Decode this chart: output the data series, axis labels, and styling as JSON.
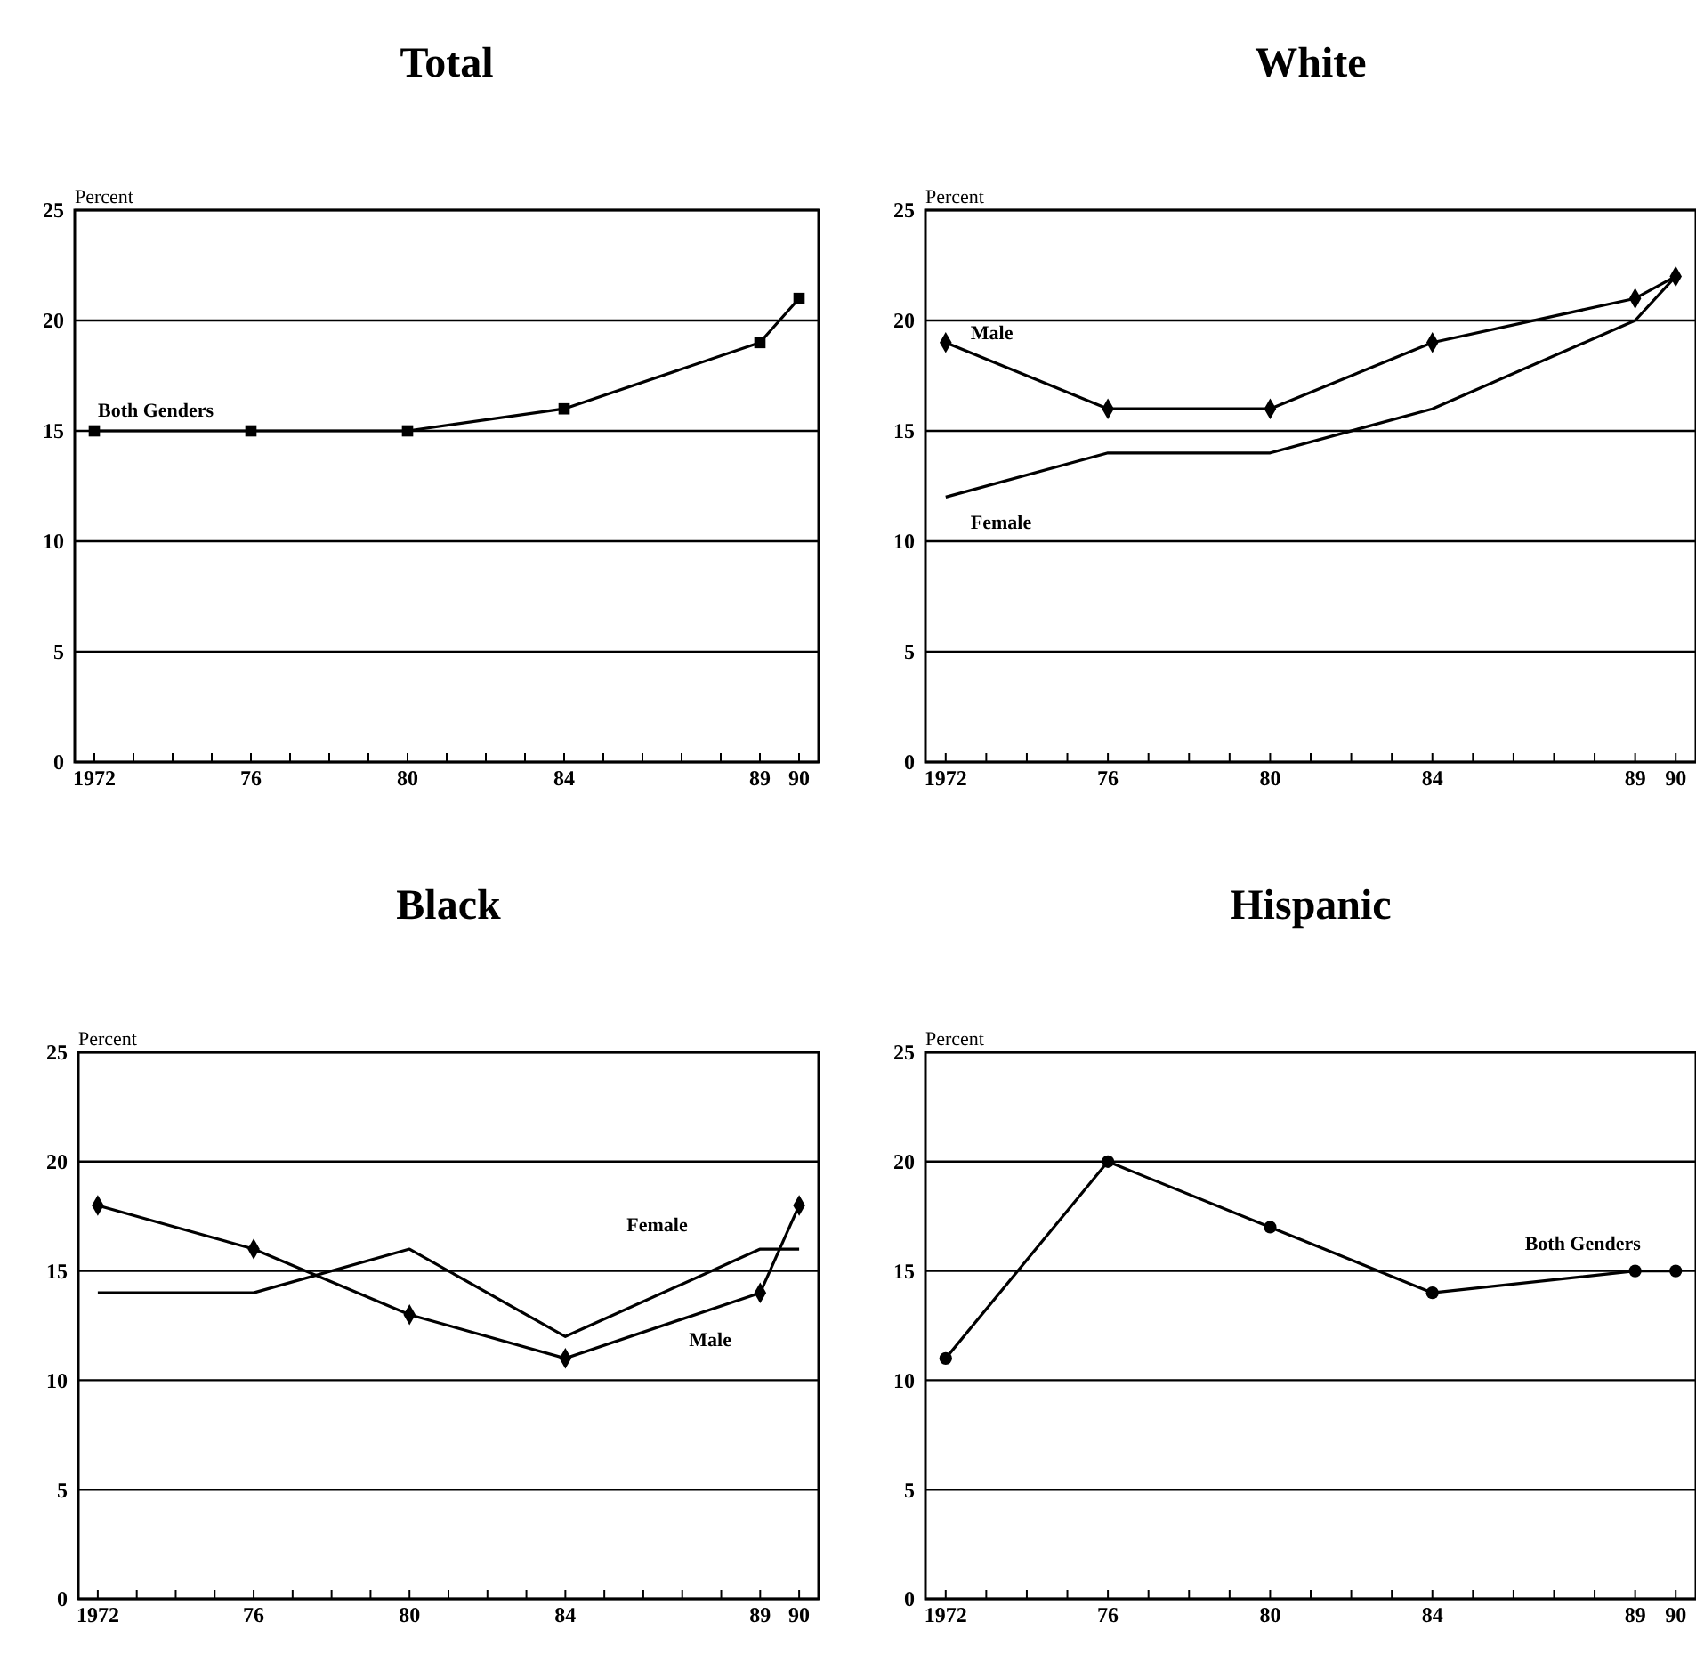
{
  "chart_data": [
    {
      "type": "line",
      "title": "Total",
      "ylabel": "Percent",
      "x": [
        1972,
        1976,
        1980,
        1984,
        1989,
        1990
      ],
      "xlim": [
        1971.5,
        1990.5
      ],
      "ylim": [
        0,
        25
      ],
      "yticks": [
        0,
        5,
        10,
        15,
        20,
        25
      ],
      "xticks": [
        {
          "value": 1972,
          "label": "1972"
        },
        {
          "value": 1973,
          "label": null
        },
        {
          "value": 1974,
          "label": null
        },
        {
          "value": 1975,
          "label": null
        },
        {
          "value": 1976,
          "label": "76"
        },
        {
          "value": 1977,
          "label": null
        },
        {
          "value": 1978,
          "label": null
        },
        {
          "value": 1979,
          "label": null
        },
        {
          "value": 1980,
          "label": "80"
        },
        {
          "value": 1981,
          "label": null
        },
        {
          "value": 1982,
          "label": null
        },
        {
          "value": 1983,
          "label": null
        },
        {
          "value": 1984,
          "label": "84"
        },
        {
          "value": 1985,
          "label": null
        },
        {
          "value": 1986,
          "label": null
        },
        {
          "value": 1987,
          "label": null
        },
        {
          "value": 1988,
          "label": null
        },
        {
          "value": 1989,
          "label": "89"
        },
        {
          "value": 1990,
          "label": "90"
        }
      ],
      "grid": "y",
      "series": [
        {
          "name": "Both Genders",
          "color": "#000000",
          "marker": "square",
          "values": [
            15,
            15,
            15,
            16,
            19,
            21
          ]
        }
      ]
    },
    {
      "type": "line",
      "title": "White",
      "ylabel": "Percent",
      "x": [
        1972,
        1976,
        1980,
        1984,
        1989,
        1990
      ],
      "xlim": [
        1971.5,
        1990.5
      ],
      "ylim": [
        0,
        25
      ],
      "yticks": [
        0,
        5,
        10,
        15,
        20,
        25
      ],
      "xticks": [
        {
          "value": 1972,
          "label": "1972"
        },
        {
          "value": 1973,
          "label": null
        },
        {
          "value": 1974,
          "label": null
        },
        {
          "value": 1975,
          "label": null
        },
        {
          "value": 1976,
          "label": "76"
        },
        {
          "value": 1977,
          "label": null
        },
        {
          "value": 1978,
          "label": null
        },
        {
          "value": 1979,
          "label": null
        },
        {
          "value": 1980,
          "label": "80"
        },
        {
          "value": 1981,
          "label": null
        },
        {
          "value": 1982,
          "label": null
        },
        {
          "value": 1983,
          "label": null
        },
        {
          "value": 1984,
          "label": "84"
        },
        {
          "value": 1985,
          "label": null
        },
        {
          "value": 1986,
          "label": null
        },
        {
          "value": 1987,
          "label": null
        },
        {
          "value": 1988,
          "label": null
        },
        {
          "value": 1989,
          "label": "89"
        },
        {
          "value": 1990,
          "label": "90"
        }
      ],
      "grid": "y",
      "series": [
        {
          "name": "Male",
          "color": "#000000",
          "marker": "diamond",
          "values": [
            19,
            16,
            16,
            19,
            21,
            22
          ]
        },
        {
          "name": "Female",
          "color": "#000000",
          "marker": "none",
          "values": [
            12,
            14,
            14,
            16,
            20,
            22
          ]
        }
      ]
    },
    {
      "type": "line",
      "title": "Black",
      "ylabel": "Percent",
      "x": [
        1972,
        1976,
        1980,
        1984,
        1989,
        1990
      ],
      "xlim": [
        1971.5,
        1990.5
      ],
      "ylim": [
        0,
        25
      ],
      "yticks": [
        0,
        5,
        10,
        15,
        20,
        25
      ],
      "xticks": [
        {
          "value": 1972,
          "label": "1972"
        },
        {
          "value": 1973,
          "label": null
        },
        {
          "value": 1974,
          "label": null
        },
        {
          "value": 1975,
          "label": null
        },
        {
          "value": 1976,
          "label": "76"
        },
        {
          "value": 1977,
          "label": null
        },
        {
          "value": 1978,
          "label": null
        },
        {
          "value": 1979,
          "label": null
        },
        {
          "value": 1980,
          "label": "80"
        },
        {
          "value": 1981,
          "label": null
        },
        {
          "value": 1982,
          "label": null
        },
        {
          "value": 1983,
          "label": null
        },
        {
          "value": 1984,
          "label": "84"
        },
        {
          "value": 1985,
          "label": null
        },
        {
          "value": 1986,
          "label": null
        },
        {
          "value": 1987,
          "label": null
        },
        {
          "value": 1988,
          "label": null
        },
        {
          "value": 1989,
          "label": "89"
        },
        {
          "value": 1990,
          "label": "90"
        }
      ],
      "grid": "y",
      "series": [
        {
          "name": "Male",
          "color": "#000000",
          "marker": "diamond",
          "values": [
            18,
            16,
            13,
            11,
            14,
            18
          ]
        },
        {
          "name": "Female",
          "color": "#000000",
          "marker": "none",
          "values": [
            14,
            14,
            16,
            12,
            16,
            16
          ]
        }
      ]
    },
    {
      "type": "line",
      "title": "Hispanic",
      "ylabel": "Percent",
      "x": [
        1972,
        1976,
        1980,
        1984,
        1989,
        1990
      ],
      "xlim": [
        1971.5,
        1990.5
      ],
      "ylim": [
        0,
        25
      ],
      "yticks": [
        0,
        5,
        10,
        15,
        20,
        25
      ],
      "xticks": [
        {
          "value": 1972,
          "label": "1972"
        },
        {
          "value": 1973,
          "label": null
        },
        {
          "value": 1974,
          "label": null
        },
        {
          "value": 1975,
          "label": null
        },
        {
          "value": 1976,
          "label": "76"
        },
        {
          "value": 1977,
          "label": null
        },
        {
          "value": 1978,
          "label": null
        },
        {
          "value": 1979,
          "label": null
        },
        {
          "value": 1980,
          "label": "80"
        },
        {
          "value": 1981,
          "label": null
        },
        {
          "value": 1982,
          "label": null
        },
        {
          "value": 1983,
          "label": null
        },
        {
          "value": 1984,
          "label": "84"
        },
        {
          "value": 1985,
          "label": null
        },
        {
          "value": 1986,
          "label": null
        },
        {
          "value": 1987,
          "label": null
        },
        {
          "value": 1988,
          "label": null
        },
        {
          "value": 1989,
          "label": "89"
        },
        {
          "value": 1990,
          "label": "90"
        }
      ],
      "grid": "y",
      "series": [
        {
          "name": "Both Genders",
          "color": "#000000",
          "marker": "circle",
          "values": [
            11,
            20,
            17,
            14,
            15,
            15
          ]
        }
      ]
    }
  ]
}
